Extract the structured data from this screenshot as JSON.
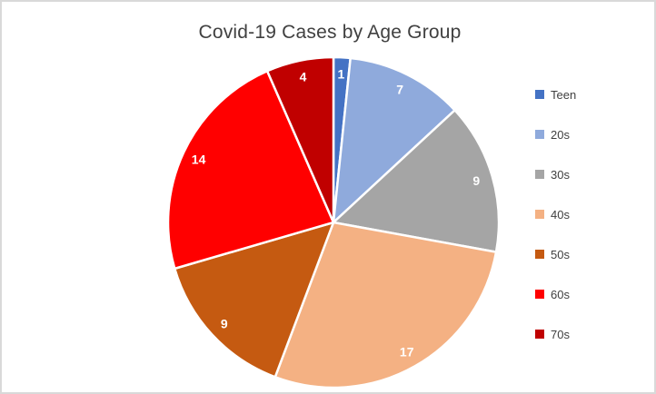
{
  "chart_data": {
    "type": "pie",
    "title": "Covid-19 Cases by Age Group",
    "categories": [
      "Teen",
      "20s",
      "30s",
      "40s",
      "50s",
      "60s",
      "70s"
    ],
    "values": [
      1,
      7,
      9,
      17,
      9,
      14,
      4
    ],
    "colors": [
      "#4472C4",
      "#8FAADC",
      "#A5A5A5",
      "#F4B183",
      "#C55A11",
      "#FF0000",
      "#C00000"
    ],
    "total": 61,
    "start_angle_deg": 0,
    "direction": "clockwise",
    "data_labels": "inside-end",
    "data_label_color": "#FFFFFF",
    "slice_border_color": "#FFFFFF",
    "legend_position": "right",
    "title_color": "#404040",
    "legend_text_color": "#404040",
    "background_color": "#FFFFFF",
    "frame_border_color": "#D9D9D9"
  }
}
